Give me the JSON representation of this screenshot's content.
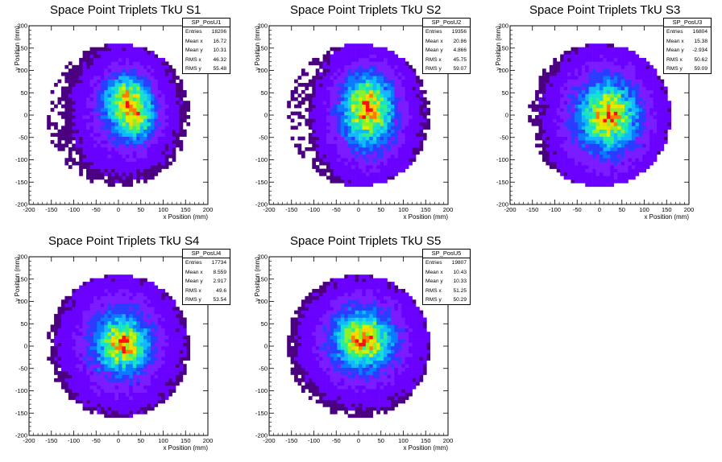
{
  "chart_data": [
    {
      "type": "heatmap",
      "title": "Space Point Triplets TkU S1",
      "xlabel": "x Position (mm)",
      "ylabel": "y Position (mm)",
      "xlim": [
        -200,
        200
      ],
      "ylim": [
        -200,
        200
      ],
      "xticks": [
        -200,
        -150,
        -100,
        -50,
        0,
        50,
        100,
        150,
        200
      ],
      "yticks": [
        -200,
        -150,
        -100,
        -50,
        0,
        50,
        100,
        150,
        200
      ],
      "grid": false,
      "stats": {
        "name": "SP_PosU1",
        "rows": [
          {
            "label": "Entries",
            "value": "18206"
          },
          {
            "label": "Mean x",
            "value": "16.72"
          },
          {
            "label": "Mean y",
            "value": "10.31"
          },
          {
            "label": "RMS x",
            "value": "46.32"
          },
          {
            "label": "RMS y",
            "value": "55.48"
          }
        ]
      },
      "blobs": [
        {
          "cx": 20,
          "cy": 35,
          "sx": 28,
          "sy": 30,
          "w": 1.0
        },
        {
          "cx": 40,
          "cy": -10,
          "sx": 25,
          "sy": 28,
          "w": 0.75
        },
        {
          "cx": 15,
          "cy": 10,
          "sx": 65,
          "sy": 80,
          "w": 0.35
        }
      ]
    },
    {
      "type": "heatmap",
      "title": "Space Point Triplets TkU S2",
      "xlabel": "x Position (mm)",
      "ylabel": "y Position (mm)",
      "xlim": [
        -200,
        200
      ],
      "ylim": [
        -200,
        200
      ],
      "xticks": [
        -200,
        -150,
        -100,
        -50,
        0,
        50,
        100,
        150,
        200
      ],
      "yticks": [
        -200,
        -150,
        -100,
        -50,
        0,
        50,
        100,
        150,
        200
      ],
      "grid": false,
      "stats": {
        "name": "SP_PosU2",
        "rows": [
          {
            "label": "Entries",
            "value": "19356"
          },
          {
            "label": "Mean x",
            "value": "20.86"
          },
          {
            "label": "Mean y",
            "value": "4.866"
          },
          {
            "label": "RMS x",
            "value": "45.75"
          },
          {
            "label": "RMS y",
            "value": "59.07"
          }
        ]
      },
      "blobs": [
        {
          "cx": 20,
          "cy": 15,
          "sx": 30,
          "sy": 40,
          "w": 1.0
        },
        {
          "cx": 20,
          "cy": 0,
          "sx": 62,
          "sy": 85,
          "w": 0.38
        }
      ]
    },
    {
      "type": "heatmap",
      "title": "Space Point Triplets TkU S3",
      "xlabel": "x Position (mm)",
      "ylabel": "y Position (mm)",
      "xlim": [
        -200,
        200
      ],
      "ylim": [
        -200,
        200
      ],
      "xticks": [
        -200,
        -150,
        -100,
        -50,
        0,
        50,
        100,
        150,
        200
      ],
      "yticks": [
        -200,
        -150,
        -100,
        -50,
        0,
        50,
        100,
        150,
        200
      ],
      "grid": false,
      "stats": {
        "name": "SP_PosU3",
        "rows": [
          {
            "label": "Entries",
            "value": "16804"
          },
          {
            "label": "Mean x",
            "value": "15.38"
          },
          {
            "label": "Mean y",
            "value": "-2.934"
          },
          {
            "label": "RMS x",
            "value": "50.62"
          },
          {
            "label": "RMS y",
            "value": "59.09"
          }
        ]
      },
      "blobs": [
        {
          "cx": 20,
          "cy": 0,
          "sx": 32,
          "sy": 38,
          "w": 1.0
        },
        {
          "cx": 15,
          "cy": -5,
          "sx": 72,
          "sy": 85,
          "w": 0.4
        }
      ]
    },
    {
      "type": "heatmap",
      "title": "Space Point Triplets TkU S4",
      "xlabel": "x Position (mm)",
      "ylabel": "y Position (mm)",
      "xlim": [
        -200,
        200
      ],
      "ylim": [
        -200,
        200
      ],
      "xticks": [
        -200,
        -150,
        -100,
        -50,
        0,
        50,
        100,
        150,
        200
      ],
      "yticks": [
        -200,
        -150,
        -100,
        -50,
        0,
        50,
        100,
        150,
        200
      ],
      "grid": false,
      "stats": {
        "name": "SP_PosU4",
        "rows": [
          {
            "label": "Entries",
            "value": "17734"
          },
          {
            "label": "Mean x",
            "value": "8.559"
          },
          {
            "label": "Mean y",
            "value": "2.917"
          },
          {
            "label": "RMS x",
            "value": "49.6"
          },
          {
            "label": "RMS y",
            "value": "53.54"
          }
        ]
      },
      "blobs": [
        {
          "cx": 10,
          "cy": 5,
          "sx": 30,
          "sy": 32,
          "w": 1.0
        },
        {
          "cx": 5,
          "cy": 5,
          "sx": 72,
          "sy": 80,
          "w": 0.38
        }
      ]
    },
    {
      "type": "heatmap",
      "title": "Space Point Triplets TkU S5",
      "xlabel": "x Position (mm)",
      "ylabel": "y Position (mm)",
      "xlim": [
        -200,
        200
      ],
      "ylim": [
        -200,
        200
      ],
      "xticks": [
        -200,
        -150,
        -100,
        -50,
        0,
        50,
        100,
        150,
        200
      ],
      "yticks": [
        -200,
        -150,
        -100,
        -50,
        0,
        50,
        100,
        150,
        200
      ],
      "grid": false,
      "stats": {
        "name": "SP_PosU5",
        "rows": [
          {
            "label": "Entries",
            "value": "19807"
          },
          {
            "label": "Mean x",
            "value": "10.43"
          },
          {
            "label": "Mean y",
            "value": "10.33"
          },
          {
            "label": "RMS x",
            "value": "51.25"
          },
          {
            "label": "RMS y",
            "value": "50.29"
          }
        ]
      },
      "blobs": [
        {
          "cx": 10,
          "cy": 15,
          "sx": 34,
          "sy": 32,
          "w": 1.0
        },
        {
          "cx": 10,
          "cy": 10,
          "sx": 75,
          "sy": 75,
          "w": 0.38
        }
      ]
    }
  ],
  "palette": [
    "#4b0082",
    "#6a00ff",
    "#7a1cff",
    "#2a3cff",
    "#0a7bff",
    "#12b7ff",
    "#17e0d0",
    "#2ef08a",
    "#8ef02a",
    "#d8f000",
    "#ffd400",
    "#ff7a00",
    "#ff1010"
  ]
}
